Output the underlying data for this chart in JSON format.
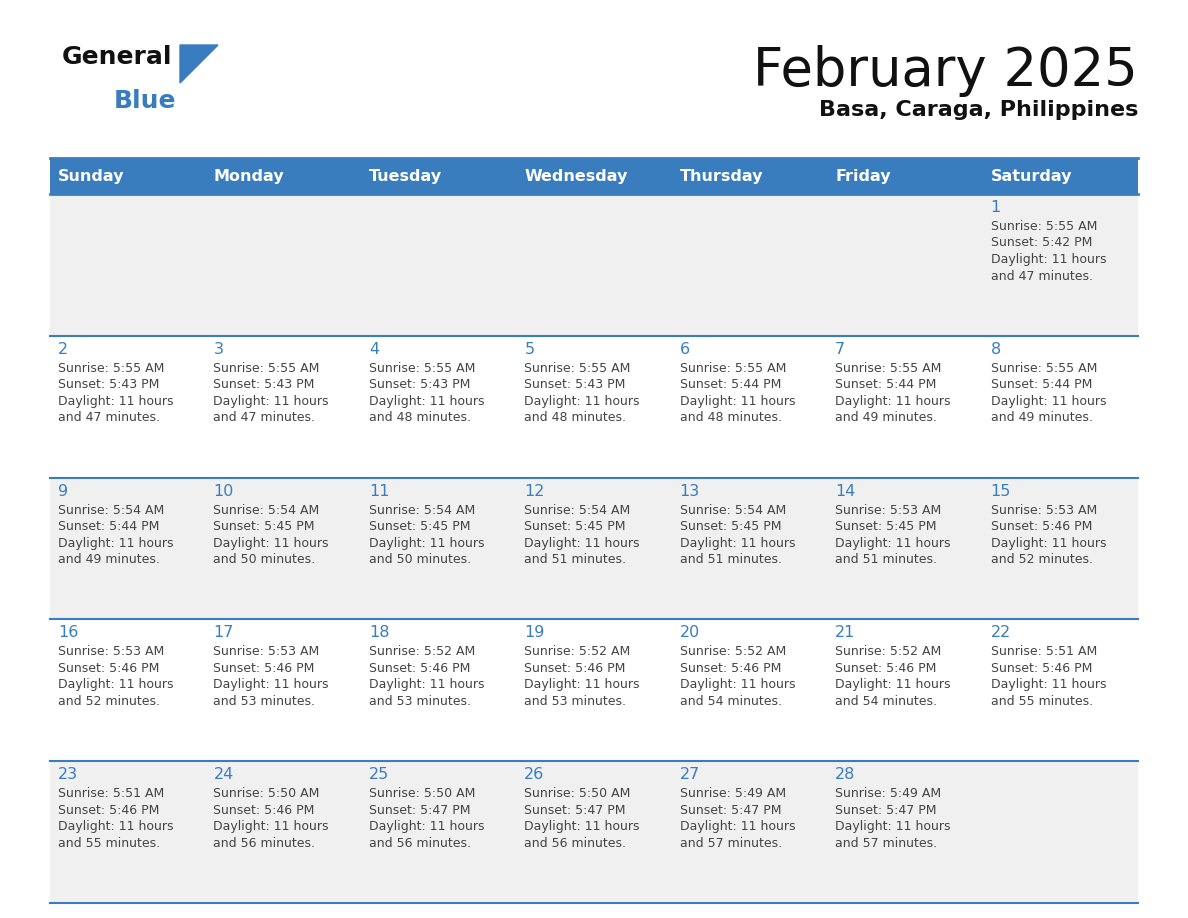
{
  "title": "February 2025",
  "subtitle": "Basa, Caraga, Philippines",
  "header_bg": "#3a7dbf",
  "header_text": "#ffffff",
  "day_names": [
    "Sunday",
    "Monday",
    "Tuesday",
    "Wednesday",
    "Thursday",
    "Friday",
    "Saturday"
  ],
  "row_bg_odd": "#f0f0f0",
  "row_bg_even": "#ffffff",
  "cell_border_color": "#3a7dbf",
  "day_num_color": "#3a7dbf",
  "info_color": "#444444",
  "title_color": "#111111",
  "subtitle_color": "#111111",
  "logo_general_color": "#111111",
  "logo_blue_color": "#3a7dbf",
  "logo_triangle_color": "#3a7dbf",
  "calendar": [
    [
      null,
      null,
      null,
      null,
      null,
      null,
      {
        "day": "1",
        "sunrise": "5:55 AM",
        "sunset": "5:42 PM",
        "dl1": "Daylight: 11 hours",
        "dl2": "and 47 minutes."
      }
    ],
    [
      {
        "day": "2",
        "sunrise": "5:55 AM",
        "sunset": "5:43 PM",
        "dl1": "Daylight: 11 hours",
        "dl2": "and 47 minutes."
      },
      {
        "day": "3",
        "sunrise": "5:55 AM",
        "sunset": "5:43 PM",
        "dl1": "Daylight: 11 hours",
        "dl2": "and 47 minutes."
      },
      {
        "day": "4",
        "sunrise": "5:55 AM",
        "sunset": "5:43 PM",
        "dl1": "Daylight: 11 hours",
        "dl2": "and 48 minutes."
      },
      {
        "day": "5",
        "sunrise": "5:55 AM",
        "sunset": "5:43 PM",
        "dl1": "Daylight: 11 hours",
        "dl2": "and 48 minutes."
      },
      {
        "day": "6",
        "sunrise": "5:55 AM",
        "sunset": "5:44 PM",
        "dl1": "Daylight: 11 hours",
        "dl2": "and 48 minutes."
      },
      {
        "day": "7",
        "sunrise": "5:55 AM",
        "sunset": "5:44 PM",
        "dl1": "Daylight: 11 hours",
        "dl2": "and 49 minutes."
      },
      {
        "day": "8",
        "sunrise": "5:55 AM",
        "sunset": "5:44 PM",
        "dl1": "Daylight: 11 hours",
        "dl2": "and 49 minutes."
      }
    ],
    [
      {
        "day": "9",
        "sunrise": "5:54 AM",
        "sunset": "5:44 PM",
        "dl1": "Daylight: 11 hours",
        "dl2": "and 49 minutes."
      },
      {
        "day": "10",
        "sunrise": "5:54 AM",
        "sunset": "5:45 PM",
        "dl1": "Daylight: 11 hours",
        "dl2": "and 50 minutes."
      },
      {
        "day": "11",
        "sunrise": "5:54 AM",
        "sunset": "5:45 PM",
        "dl1": "Daylight: 11 hours",
        "dl2": "and 50 minutes."
      },
      {
        "day": "12",
        "sunrise": "5:54 AM",
        "sunset": "5:45 PM",
        "dl1": "Daylight: 11 hours",
        "dl2": "and 51 minutes."
      },
      {
        "day": "13",
        "sunrise": "5:54 AM",
        "sunset": "5:45 PM",
        "dl1": "Daylight: 11 hours",
        "dl2": "and 51 minutes."
      },
      {
        "day": "14",
        "sunrise": "5:53 AM",
        "sunset": "5:45 PM",
        "dl1": "Daylight: 11 hours",
        "dl2": "and 51 minutes."
      },
      {
        "day": "15",
        "sunrise": "5:53 AM",
        "sunset": "5:46 PM",
        "dl1": "Daylight: 11 hours",
        "dl2": "and 52 minutes."
      }
    ],
    [
      {
        "day": "16",
        "sunrise": "5:53 AM",
        "sunset": "5:46 PM",
        "dl1": "Daylight: 11 hours",
        "dl2": "and 52 minutes."
      },
      {
        "day": "17",
        "sunrise": "5:53 AM",
        "sunset": "5:46 PM",
        "dl1": "Daylight: 11 hours",
        "dl2": "and 53 minutes."
      },
      {
        "day": "18",
        "sunrise": "5:52 AM",
        "sunset": "5:46 PM",
        "dl1": "Daylight: 11 hours",
        "dl2": "and 53 minutes."
      },
      {
        "day": "19",
        "sunrise": "5:52 AM",
        "sunset": "5:46 PM",
        "dl1": "Daylight: 11 hours",
        "dl2": "and 53 minutes."
      },
      {
        "day": "20",
        "sunrise": "5:52 AM",
        "sunset": "5:46 PM",
        "dl1": "Daylight: 11 hours",
        "dl2": "and 54 minutes."
      },
      {
        "day": "21",
        "sunrise": "5:52 AM",
        "sunset": "5:46 PM",
        "dl1": "Daylight: 11 hours",
        "dl2": "and 54 minutes."
      },
      {
        "day": "22",
        "sunrise": "5:51 AM",
        "sunset": "5:46 PM",
        "dl1": "Daylight: 11 hours",
        "dl2": "and 55 minutes."
      }
    ],
    [
      {
        "day": "23",
        "sunrise": "5:51 AM",
        "sunset": "5:46 PM",
        "dl1": "Daylight: 11 hours",
        "dl2": "and 55 minutes."
      },
      {
        "day": "24",
        "sunrise": "5:50 AM",
        "sunset": "5:46 PM",
        "dl1": "Daylight: 11 hours",
        "dl2": "and 56 minutes."
      },
      {
        "day": "25",
        "sunrise": "5:50 AM",
        "sunset": "5:47 PM",
        "dl1": "Daylight: 11 hours",
        "dl2": "and 56 minutes."
      },
      {
        "day": "26",
        "sunrise": "5:50 AM",
        "sunset": "5:47 PM",
        "dl1": "Daylight: 11 hours",
        "dl2": "and 56 minutes."
      },
      {
        "day": "27",
        "sunrise": "5:49 AM",
        "sunset": "5:47 PM",
        "dl1": "Daylight: 11 hours",
        "dl2": "and 57 minutes."
      },
      {
        "day": "28",
        "sunrise": "5:49 AM",
        "sunset": "5:47 PM",
        "dl1": "Daylight: 11 hours",
        "dl2": "and 57 minutes."
      },
      null
    ]
  ]
}
